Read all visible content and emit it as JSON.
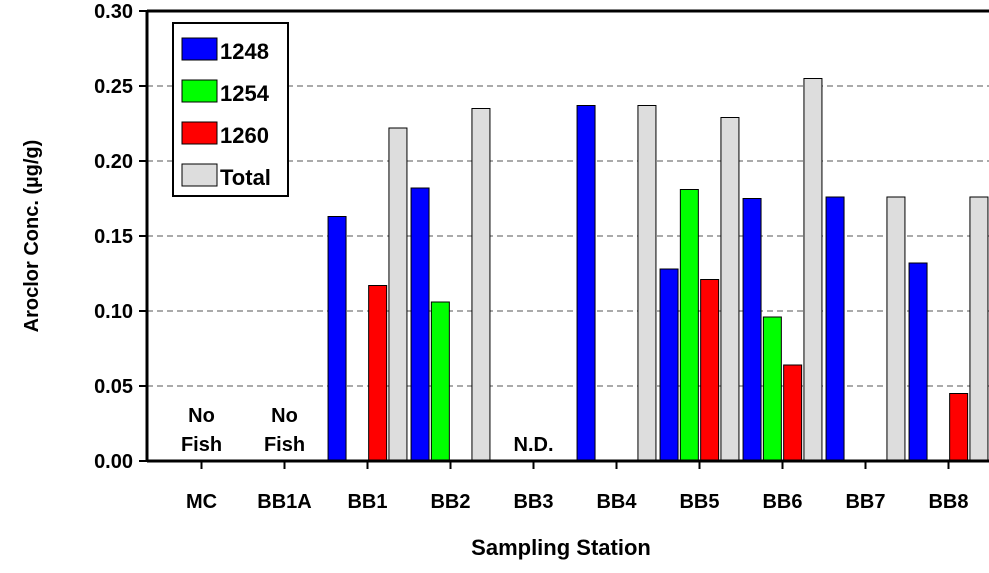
{
  "chart_data": {
    "type": "bar",
    "xlabel": "Sampling Station",
    "ylabel": "Aroclor Conc. (µg/g)",
    "ylim": [
      0,
      0.3
    ],
    "yticks": [
      "0.00",
      "0.05",
      "0.10",
      "0.15",
      "0.20",
      "0.25",
      "0.30"
    ],
    "grid": "horizontal dashed",
    "legend_position": "top-left",
    "categories": [
      "MC",
      "BB1A",
      "BB1",
      "BB2",
      "BB3",
      "BB4",
      "BB5",
      "BB6",
      "BB7",
      "BB8"
    ],
    "series": [
      {
        "name": "1248",
        "color": "#0000ff",
        "values": [
          0,
          0,
          0.163,
          0.182,
          0,
          0.237,
          0.128,
          0.175,
          0.176,
          0.132
        ]
      },
      {
        "name": "1254",
        "color": "#00ff00",
        "values": [
          0,
          0,
          0,
          0.106,
          0,
          0,
          0.181,
          0.096,
          0,
          0
        ]
      },
      {
        "name": "1260",
        "color": "#ff0000",
        "values": [
          0,
          0,
          0.117,
          0,
          0,
          0,
          0.121,
          0.064,
          0,
          0.045
        ]
      },
      {
        "name": "Total",
        "color": "#dddddd",
        "values": [
          0,
          0,
          0.222,
          0.235,
          0,
          0.237,
          0.229,
          0.255,
          0.176,
          0.176
        ]
      }
    ],
    "annotations": [
      {
        "category": "MC",
        "lines": [
          "No",
          "Fish"
        ]
      },
      {
        "category": "BB1A",
        "lines": [
          "No",
          "Fish"
        ]
      },
      {
        "category": "BB3",
        "lines": [
          "N.D."
        ]
      }
    ]
  }
}
